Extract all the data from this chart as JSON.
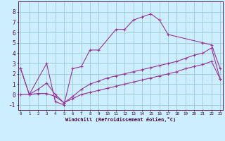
{
  "background_color": "#cceeff",
  "grid_color": "#99cccc",
  "line_color": "#993399",
  "xlim_min": 0,
  "xlim_max": 23,
  "ylim_min": -1.5,
  "ylim_max": 9.0,
  "xticks": [
    0,
    1,
    2,
    3,
    4,
    5,
    6,
    7,
    8,
    9,
    10,
    11,
    12,
    13,
    14,
    15,
    16,
    17,
    18,
    19,
    20,
    21,
    22,
    23
  ],
  "yticks": [
    -1,
    0,
    1,
    2,
    3,
    4,
    5,
    6,
    7,
    8
  ],
  "xlabel": "Windchill (Refroidissement éolien,°C)",
  "line1_x": [
    0,
    1,
    3,
    4,
    5,
    6,
    7,
    8,
    9,
    11,
    12,
    13,
    14,
    15,
    16,
    17,
    21,
    22,
    23
  ],
  "line1_y": [
    2.5,
    0.0,
    3.0,
    -0.7,
    -1.0,
    2.5,
    2.7,
    4.3,
    4.3,
    6.3,
    6.3,
    7.2,
    7.5,
    7.8,
    7.2,
    5.8,
    5.0,
    4.8,
    2.5
  ],
  "line2_x": [
    0,
    1,
    2,
    3,
    4,
    5,
    6,
    7,
    8,
    9,
    10,
    11,
    12,
    13,
    14,
    15,
    16,
    17,
    18,
    19,
    20,
    21,
    22,
    23
  ],
  "line2_y": [
    2.5,
    0.0,
    0.5,
    1.1,
    0.0,
    -0.8,
    -0.2,
    0.5,
    1.0,
    1.3,
    1.6,
    1.8,
    2.0,
    2.2,
    2.4,
    2.6,
    2.8,
    3.0,
    3.2,
    3.5,
    3.8,
    4.0,
    4.5,
    1.5
  ],
  "line3_x": [
    0,
    1,
    2,
    3,
    4,
    5,
    6,
    7,
    8,
    9,
    10,
    11,
    12,
    13,
    14,
    15,
    16,
    17,
    18,
    19,
    20,
    21,
    22,
    23
  ],
  "line3_y": [
    0.0,
    0.0,
    0.1,
    0.1,
    -0.2,
    -0.8,
    -0.4,
    0.0,
    0.2,
    0.4,
    0.6,
    0.8,
    1.0,
    1.2,
    1.4,
    1.6,
    1.8,
    2.0,
    2.2,
    2.5,
    2.7,
    2.9,
    3.2,
    1.5
  ]
}
